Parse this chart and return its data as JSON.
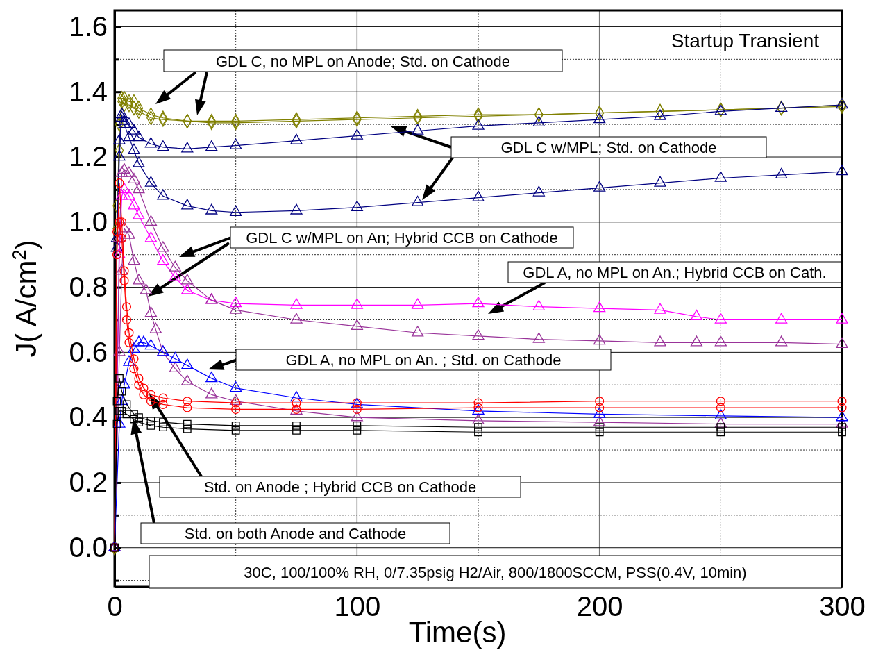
{
  "chart_data": {
    "type": "line",
    "title": "Startup Transient",
    "xlabel": "Time(s)",
    "ylabel": "J( A/cm$^{2}$)",
    "xlim": [
      0,
      300
    ],
    "ylim": [
      -0.12,
      1.65
    ],
    "xticks": [
      0,
      {
        "value": 50,
        "label": null
      },
      100,
      {
        "value": 150,
        "label": null
      },
      200,
      {
        "value": 250,
        "label": null
      },
      300
    ],
    "yticks": [
      {
        "value": -0.1,
        "label": null
      },
      {
        "value": 0,
        "label": "0.0"
      },
      {
        "value": 0.1,
        "label": null
      },
      0.2,
      {
        "value": 0.3,
        "label": null
      },
      0.4,
      {
        "value": 0.5,
        "label": null
      },
      0.6,
      {
        "value": 0.7,
        "label": null
      },
      0.8,
      {
        "value": 0.9,
        "label": null
      },
      {
        "value": 1.0,
        "label": "1.0"
      },
      {
        "value": 1.1,
        "label": null
      },
      1.2,
      {
        "value": 1.3,
        "label": null
      },
      1.4,
      {
        "value": 1.5,
        "label": null
      },
      1.6
    ],
    "grid": true,
    "series": [
      {
        "color": "#808000",
        "marker": "diamond",
        "x": [
          0,
          1,
          2,
          3,
          4,
          6,
          8,
          10,
          15,
          20,
          30,
          40,
          50,
          75,
          100,
          125,
          150,
          175,
          200,
          225,
          250,
          275,
          300
        ],
        "values": [
          0,
          1.05,
          1.22,
          1.38,
          1.38,
          1.37,
          1.37,
          1.35,
          1.33,
          1.32,
          1.31,
          1.31,
          1.31,
          1.315,
          1.32,
          1.325,
          1.33,
          1.33,
          1.335,
          1.34,
          1.345,
          1.35,
          1.36
        ]
      },
      {
        "color": "#808000",
        "marker": "diamond",
        "x": [
          0,
          1,
          2,
          3,
          4,
          6,
          8,
          10,
          15,
          20,
          30,
          40,
          50,
          75,
          100,
          125,
          150,
          175,
          200,
          225,
          250,
          275,
          300
        ],
        "values": [
          0,
          0.98,
          1.3,
          1.37,
          1.36,
          1.36,
          1.35,
          1.34,
          1.32,
          1.315,
          1.31,
          1.305,
          1.305,
          1.31,
          1.315,
          1.32,
          1.325,
          1.33,
          1.335,
          1.34,
          1.345,
          1.35,
          1.355
        ]
      },
      {
        "color": "#000080",
        "marker": "triangle",
        "x": [
          0,
          1,
          2,
          3,
          4,
          6,
          8,
          10,
          15,
          20,
          30,
          40,
          50,
          75,
          100,
          125,
          150,
          175,
          200,
          225,
          250,
          275,
          300
        ],
        "values": [
          0,
          0.92,
          1.2,
          1.33,
          1.3,
          1.26,
          1.22,
          1.18,
          1.12,
          1.08,
          1.05,
          1.035,
          1.03,
          1.035,
          1.045,
          1.06,
          1.075,
          1.09,
          1.105,
          1.12,
          1.135,
          1.145,
          1.155
        ]
      },
      {
        "color": "#000080",
        "marker": "triangle",
        "x": [
          0,
          1,
          2,
          3,
          4,
          6,
          8,
          10,
          15,
          20,
          30,
          40,
          50,
          75,
          100,
          125,
          150,
          175,
          200,
          225,
          250,
          275,
          300
        ],
        "values": [
          0,
          0.95,
          1.25,
          1.32,
          1.31,
          1.3,
          1.28,
          1.26,
          1.24,
          1.23,
          1.225,
          1.23,
          1.235,
          1.25,
          1.265,
          1.28,
          1.295,
          1.305,
          1.315,
          1.325,
          1.34,
          1.35,
          1.36
        ]
      },
      {
        "color": "#ff00ff",
        "marker": "triangle",
        "x": [
          0,
          2,
          3,
          4,
          6,
          8,
          10,
          15,
          20,
          25,
          30,
          40,
          50,
          75,
          100,
          125,
          150,
          175,
          200,
          225,
          240,
          250,
          275,
          300
        ],
        "values": [
          0,
          0.9,
          1.08,
          1.1,
          1.08,
          1.05,
          1.02,
          0.95,
          0.88,
          0.83,
          0.79,
          0.76,
          0.75,
          0.745,
          0.745,
          0.745,
          0.75,
          0.74,
          0.735,
          0.73,
          0.71,
          0.7,
          0.7,
          0.7
        ]
      },
      {
        "color": "#993399",
        "marker": "triangle",
        "x": [
          0,
          2,
          3,
          4,
          6,
          8,
          10,
          15,
          20,
          25,
          30,
          40,
          50,
          75,
          100,
          125,
          150,
          175,
          200,
          225,
          240,
          250,
          275,
          300
        ],
        "values": [
          0,
          0.95,
          1.15,
          1.16,
          1.15,
          1.13,
          1.1,
          1.0,
          0.92,
          0.86,
          0.82,
          0.76,
          0.73,
          0.7,
          0.68,
          0.66,
          0.65,
          0.64,
          0.635,
          0.63,
          0.63,
          0.63,
          0.63,
          0.625
        ]
      },
      {
        "color": "#993399",
        "marker": "triangle",
        "x": [
          0,
          2,
          3,
          4,
          6,
          8,
          10,
          13,
          15,
          17,
          20,
          25,
          30,
          40,
          50,
          75,
          100,
          150,
          200,
          250,
          300
        ],
        "values": [
          0,
          0.6,
          0.85,
          0.98,
          0.96,
          0.88,
          0.82,
          0.79,
          0.72,
          0.67,
          0.6,
          0.55,
          0.51,
          0.47,
          0.45,
          0.42,
          0.4,
          0.39,
          0.385,
          0.38,
          0.38
        ]
      },
      {
        "color": "#0000ff",
        "marker": "triangle",
        "x": [
          0,
          2,
          3,
          4,
          6,
          8,
          10,
          12,
          15,
          20,
          25,
          30,
          40,
          50,
          75,
          100,
          150,
          200,
          250,
          300
        ],
        "values": [
          0,
          0.38,
          0.45,
          0.5,
          0.57,
          0.61,
          0.63,
          0.63,
          0.62,
          0.6,
          0.58,
          0.56,
          0.52,
          0.49,
          0.46,
          0.44,
          0.42,
          0.41,
          0.405,
          0.4
        ]
      },
      {
        "color": "#ff0000",
        "marker": "circle",
        "x": [
          0,
          1,
          2,
          3,
          4,
          5,
          6,
          8,
          10,
          12,
          15,
          20,
          30,
          50,
          75,
          100,
          150,
          200,
          250,
          300
        ],
        "values": [
          0,
          0.97,
          1.0,
          0.95,
          0.82,
          0.7,
          0.63,
          0.55,
          0.5,
          0.47,
          0.45,
          0.44,
          0.43,
          0.425,
          0.425,
          0.425,
          0.43,
          0.43,
          0.43,
          0.43
        ]
      },
      {
        "color": "#ff0000",
        "marker": "circle",
        "x": [
          0,
          1,
          2,
          3,
          4,
          5,
          6,
          8,
          10,
          12,
          15,
          20,
          30,
          50,
          75,
          100,
          150,
          200,
          250,
          300
        ],
        "values": [
          0,
          0.9,
          1.12,
          1.0,
          0.85,
          0.74,
          0.66,
          0.58,
          0.52,
          0.49,
          0.47,
          0.46,
          0.45,
          0.445,
          0.445,
          0.445,
          0.445,
          0.45,
          0.45,
          0.45
        ]
      },
      {
        "color": "#000000",
        "marker": "square",
        "x": [
          0,
          1,
          2,
          3,
          5,
          8,
          10,
          15,
          20,
          30,
          50,
          75,
          100,
          150,
          200,
          250,
          300
        ],
        "values": [
          0,
          0.38,
          0.42,
          0.42,
          0.41,
          0.395,
          0.385,
          0.375,
          0.37,
          0.365,
          0.36,
          0.36,
          0.36,
          0.355,
          0.355,
          0.355,
          0.355
        ]
      },
      {
        "color": "#000000",
        "marker": "square",
        "x": [
          0,
          1,
          2,
          3,
          5,
          8,
          10,
          15,
          20,
          30,
          50,
          75,
          100,
          150,
          200,
          250,
          300
        ],
        "values": [
          0,
          0.45,
          0.52,
          0.48,
          0.44,
          0.41,
          0.4,
          0.39,
          0.385,
          0.38,
          0.375,
          0.375,
          0.375,
          0.37,
          0.37,
          0.37,
          0.37
        ]
      }
    ],
    "annotations": [
      "GDL C, no MPL on Anode; Std. on Cathode",
      "GDL C w/MPL; Std. on Cathode",
      "GDL C w/MPL on An; Hybrid CCB on Cathode",
      "GDL A, no MPL on An.; Hybrid CCB on Cath.",
      "GDL A, no MPL on An. ; Std. on Cathode",
      "Std. on Anode ; Hybrid CCB on Cathode",
      "Std. on both Anode and Cathode",
      "30C, 100/100% RH, 0/7.35psig H2/Air, 800/1800SCCM, PSS(0.4V, 10min)"
    ]
  }
}
